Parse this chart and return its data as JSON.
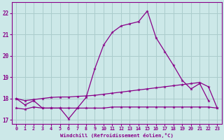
{
  "xlabel": "Windchill (Refroidissement éolien,°C)",
  "bg_color": "#cce8e8",
  "grid_color": "#aacccc",
  "line_color": "#880088",
  "xlim": [
    -0.5,
    23.5
  ],
  "ylim": [
    16.8,
    22.5
  ],
  "yticks": [
    17,
    18,
    19,
    20,
    21,
    22
  ],
  "xticks": [
    0,
    1,
    2,
    3,
    4,
    5,
    6,
    7,
    8,
    9,
    10,
    11,
    12,
    13,
    14,
    15,
    16,
    17,
    18,
    19,
    20,
    21,
    22,
    23
  ],
  "line1_x": [
    0,
    1,
    2,
    3,
    4,
    5,
    6,
    7,
    8,
    9,
    10,
    11,
    12,
    13,
    14,
    15,
    16,
    17,
    18,
    19,
    20,
    21,
    22
  ],
  "line1_y": [
    18.0,
    17.7,
    17.9,
    17.55,
    17.55,
    17.55,
    17.05,
    17.55,
    18.05,
    19.4,
    20.5,
    21.1,
    21.4,
    21.5,
    21.6,
    22.1,
    20.85,
    20.2,
    19.55,
    18.85,
    18.45,
    18.7,
    17.9
  ],
  "line2_x": [
    0,
    1,
    2,
    3,
    4,
    5,
    6,
    7,
    8,
    9,
    10,
    11,
    12,
    13,
    14,
    15,
    16,
    17,
    18,
    19,
    20,
    21,
    22,
    23
  ],
  "line2_y": [
    18.0,
    17.9,
    17.95,
    18.0,
    18.05,
    18.07,
    18.07,
    18.1,
    18.12,
    18.15,
    18.2,
    18.25,
    18.3,
    18.35,
    18.4,
    18.45,
    18.5,
    18.55,
    18.6,
    18.65,
    18.7,
    18.75,
    18.55,
    17.55
  ],
  "line3_x": [
    0,
    1,
    2,
    3,
    4,
    5,
    6,
    7,
    8,
    9,
    10,
    11,
    12,
    13,
    14,
    15,
    16,
    17,
    18,
    19,
    20,
    21,
    22,
    23
  ],
  "line3_y": [
    17.55,
    17.5,
    17.6,
    17.55,
    17.55,
    17.55,
    17.55,
    17.55,
    17.55,
    17.55,
    17.55,
    17.6,
    17.6,
    17.6,
    17.6,
    17.6,
    17.6,
    17.6,
    17.6,
    17.6,
    17.6,
    17.6,
    17.6,
    17.55
  ]
}
